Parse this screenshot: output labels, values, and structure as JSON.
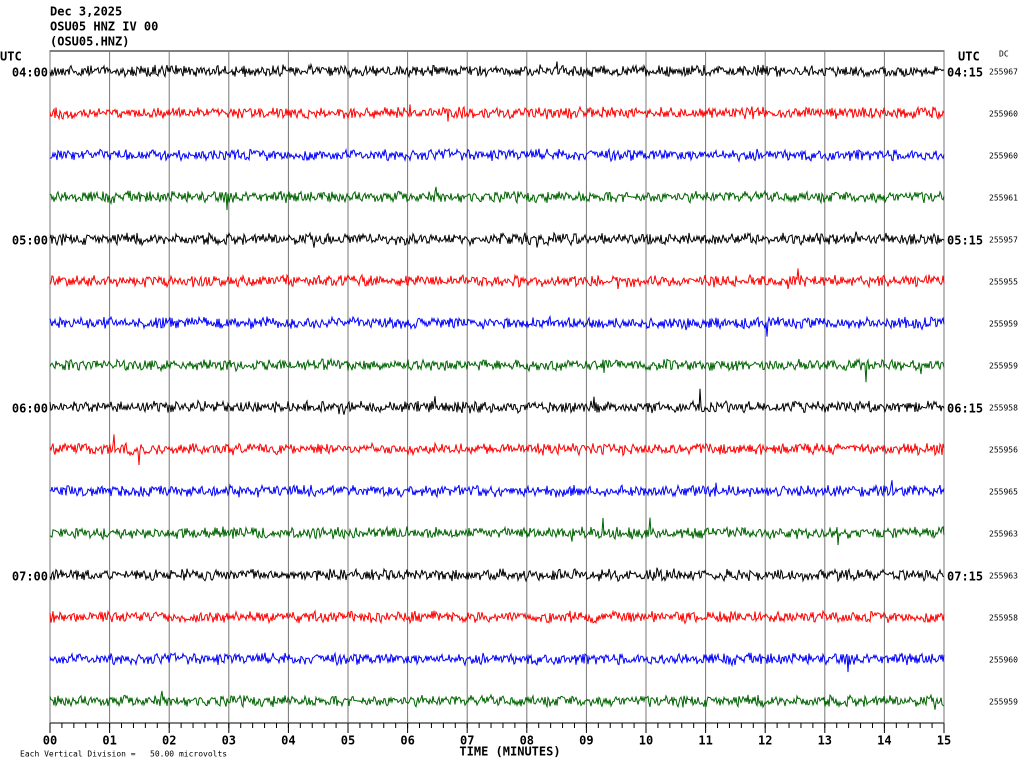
{
  "header": {
    "date": "Dec 3,2025",
    "station": "OSU05 HNZ IV 00",
    "channel": "(OSU05.HNZ)"
  },
  "chart_data": {
    "type": "helicorder",
    "left_axis_label": "UTC",
    "right_axis_label": "UTC",
    "dc_label": "DC",
    "x_label": "TIME (MINUTES)",
    "scale_note": "Each Vertical Division =   50.00 microvolts",
    "xlim": [
      0,
      15
    ],
    "xticks": [
      {
        "value": 0,
        "label": "00"
      },
      {
        "value": 1,
        "label": "01"
      },
      {
        "value": 2,
        "label": "02"
      },
      {
        "value": 3,
        "label": "03"
      },
      {
        "value": 4,
        "label": "04"
      },
      {
        "value": 5,
        "label": "05"
      },
      {
        "value": 6,
        "label": "06"
      },
      {
        "value": 7,
        "label": "07"
      },
      {
        "value": 8,
        "label": "08"
      },
      {
        "value": 9,
        "label": "09"
      },
      {
        "value": 10,
        "label": "10"
      },
      {
        "value": 11,
        "label": "11"
      },
      {
        "value": 12,
        "label": "12"
      },
      {
        "value": 13,
        "label": "13"
      },
      {
        "value": 14,
        "label": "14"
      },
      {
        "value": 15,
        "label": "15"
      }
    ],
    "rows": [
      {
        "start": "04:00",
        "end": "04:15",
        "dc": 255967,
        "color": "#000000"
      },
      {
        "start": null,
        "end": null,
        "dc": 255960,
        "color": "#ff0000"
      },
      {
        "start": null,
        "end": null,
        "dc": 255960,
        "color": "#0000ff"
      },
      {
        "start": null,
        "end": null,
        "dc": 255961,
        "color": "#006400"
      },
      {
        "start": "05:00",
        "end": "05:15",
        "dc": 255957,
        "color": "#000000"
      },
      {
        "start": null,
        "end": null,
        "dc": 255955,
        "color": "#ff0000"
      },
      {
        "start": null,
        "end": null,
        "dc": 255959,
        "color": "#0000ff"
      },
      {
        "start": null,
        "end": null,
        "dc": 255959,
        "color": "#006400"
      },
      {
        "start": "06:00",
        "end": "06:15",
        "dc": 255958,
        "color": "#000000"
      },
      {
        "start": null,
        "end": null,
        "dc": 255956,
        "color": "#ff0000"
      },
      {
        "start": null,
        "end": null,
        "dc": 255965,
        "color": "#0000ff"
      },
      {
        "start": null,
        "end": null,
        "dc": 255963,
        "color": "#006400"
      },
      {
        "start": "07:00",
        "end": "07:15",
        "dc": 255963,
        "color": "#000000"
      },
      {
        "start": null,
        "end": null,
        "dc": 255958,
        "color": "#ff0000"
      },
      {
        "start": null,
        "end": null,
        "dc": 255960,
        "color": "#0000ff"
      },
      {
        "start": null,
        "end": null,
        "dc": 255959,
        "color": "#006400"
      }
    ]
  }
}
